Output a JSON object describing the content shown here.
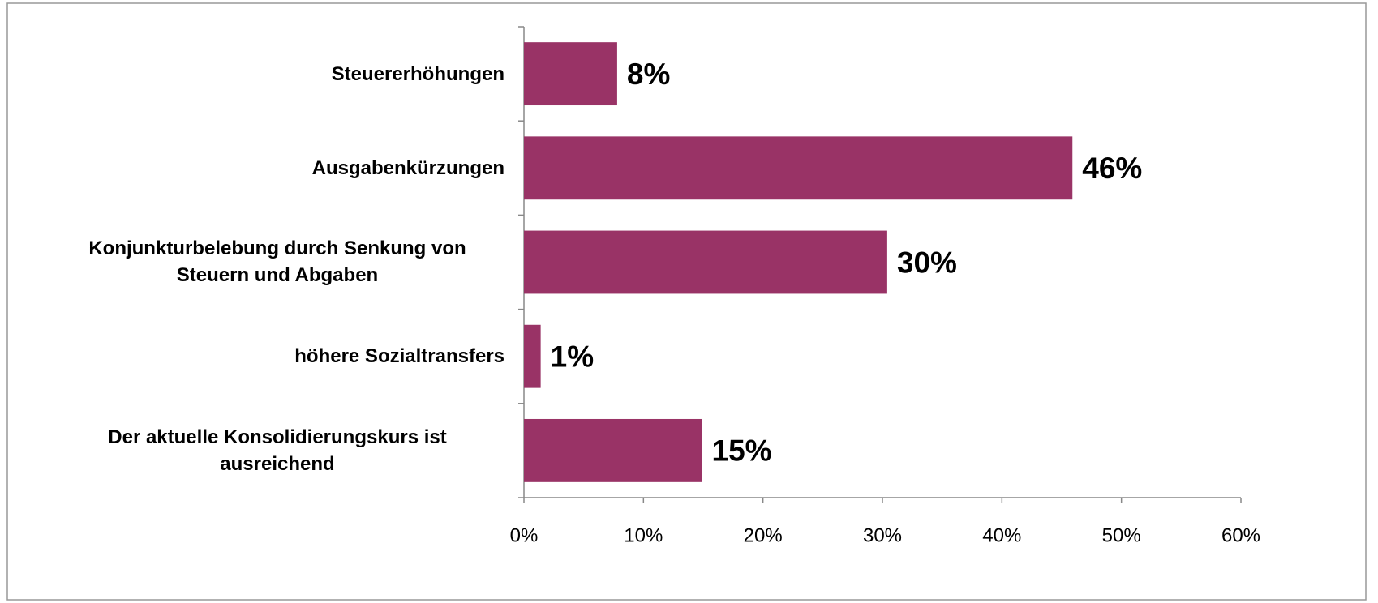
{
  "chart_data": {
    "type": "barh",
    "categories": [
      "Steuererhöhungen",
      "Ausgabenkürzungen",
      "Konjunkturbelebung durch Senkung von Steuern und Abgaben",
      "höhere Sozialtransfers",
      "Der aktuelle Konsolidierungskurs ist ausreichend"
    ],
    "values": [
      7.8,
      45.9,
      30.4,
      1.4,
      14.9
    ],
    "value_labels": [
      "8%",
      "46%",
      "30%",
      "1%",
      "15%"
    ],
    "color": "#993366",
    "xlim": [
      0,
      60
    ],
    "xticks": [
      {
        "value": 0,
        "label": "0%"
      },
      {
        "value": 10,
        "label": "10%"
      },
      {
        "value": 20,
        "label": "20%"
      },
      {
        "value": 30,
        "label": "30%"
      },
      {
        "value": 40,
        "label": "40%"
      },
      {
        "value": 50,
        "label": "50%"
      },
      {
        "value": 60,
        "label": "60%"
      }
    ]
  }
}
